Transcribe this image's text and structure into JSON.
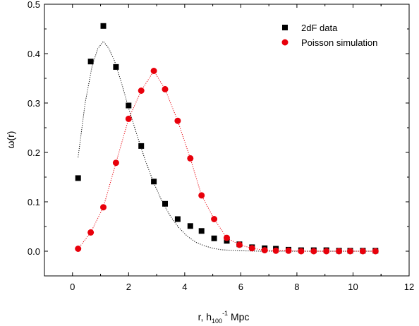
{
  "chart_data": {
    "type": "scatter",
    "title": "",
    "xlabel": {
      "main": "r, h",
      "sub": "100",
      "sup": "-1",
      "tail": " Mpc"
    },
    "ylabel": "ω(r)",
    "xlim": [
      -1,
      12
    ],
    "ylim": [
      -0.05,
      0.5
    ],
    "xticks": [
      0,
      2,
      4,
      6,
      8,
      10,
      12
    ],
    "yticks": [
      0.0,
      0.1,
      0.2,
      0.3,
      0.4,
      0.5
    ],
    "ytick_labels": [
      "0.0",
      "0.1",
      "0.2",
      "0.3",
      "0.4",
      "0.5"
    ],
    "grid": false,
    "legend_position": "top-right",
    "series": [
      {
        "name": "2dF data",
        "marker": "square",
        "color": "#000000",
        "x": [
          0.2,
          0.65,
          1.1,
          1.55,
          2.0,
          2.45,
          2.9,
          3.3,
          3.75,
          4.2,
          4.6,
          5.05,
          5.5,
          5.95,
          6.4,
          6.85,
          7.25,
          7.7,
          8.15,
          8.6,
          9.05,
          9.5,
          9.9,
          10.35,
          10.8
        ],
        "y": [
          0.148,
          0.384,
          0.456,
          0.373,
          0.295,
          0.213,
          0.141,
          0.096,
          0.065,
          0.051,
          0.041,
          0.026,
          0.021,
          0.014,
          0.008,
          0.006,
          0.005,
          0.003,
          0.002,
          0.002,
          0.002,
          0.001,
          0.001,
          0.001,
          0.001
        ]
      },
      {
        "name": "Poisson simulation",
        "marker": "circle",
        "color": "#e8000b",
        "x": [
          0.2,
          0.65,
          1.1,
          1.55,
          2.0,
          2.45,
          2.9,
          3.3,
          3.75,
          4.2,
          4.6,
          5.05,
          5.5,
          5.95,
          6.4,
          6.85,
          7.25,
          7.7,
          8.15,
          8.6,
          9.05,
          9.5,
          9.9,
          10.35,
          10.8
        ],
        "y": [
          0.005,
          0.038,
          0.089,
          0.179,
          0.268,
          0.325,
          0.365,
          0.328,
          0.264,
          0.188,
          0.113,
          0.065,
          0.027,
          0.013,
          0.006,
          0.002,
          0.001,
          0.001,
          0.0,
          0.0,
          0.0,
          0.0,
          0.0,
          0.0,
          0.0
        ]
      }
    ],
    "fit_curves": [
      {
        "for_series": "2dF data",
        "style": "dotted",
        "color": "#000000",
        "x": [
          0.2,
          0.45,
          0.7,
          0.9,
          1.1,
          1.3,
          1.5,
          1.75,
          2.0,
          2.3,
          2.6,
          2.9,
          3.2,
          3.5,
          3.8,
          4.1,
          4.4,
          4.7,
          5.0,
          5.3,
          5.6,
          5.9,
          6.2,
          6.5,
          7.0,
          8.0,
          9.0,
          10.0,
          10.8
        ],
        "y": [
          0.19,
          0.3,
          0.375,
          0.41,
          0.425,
          0.41,
          0.385,
          0.34,
          0.29,
          0.235,
          0.183,
          0.138,
          0.1,
          0.07,
          0.047,
          0.03,
          0.018,
          0.011,
          0.006,
          0.003,
          0.002,
          0.001,
          0.0005,
          0.0002,
          0.0,
          0.0,
          0.0,
          0.0,
          0.0
        ]
      },
      {
        "for_series": "Poisson simulation",
        "style": "dotted",
        "color": "#e8000b",
        "x": [
          0.2,
          0.65,
          1.1,
          1.55,
          2.0,
          2.45,
          2.9,
          3.3,
          3.75,
          4.2,
          4.6,
          5.05,
          5.5,
          5.95,
          6.4,
          6.85,
          7.25,
          7.7,
          8.15,
          8.6,
          9.05,
          9.5,
          9.9,
          10.35,
          10.8
        ],
        "y": [
          0.005,
          0.038,
          0.089,
          0.179,
          0.268,
          0.325,
          0.365,
          0.328,
          0.264,
          0.188,
          0.113,
          0.065,
          0.027,
          0.013,
          0.006,
          0.002,
          0.001,
          0.001,
          0.0,
          0.0,
          0.0,
          0.0,
          0.0,
          0.0,
          0.0
        ]
      }
    ]
  }
}
